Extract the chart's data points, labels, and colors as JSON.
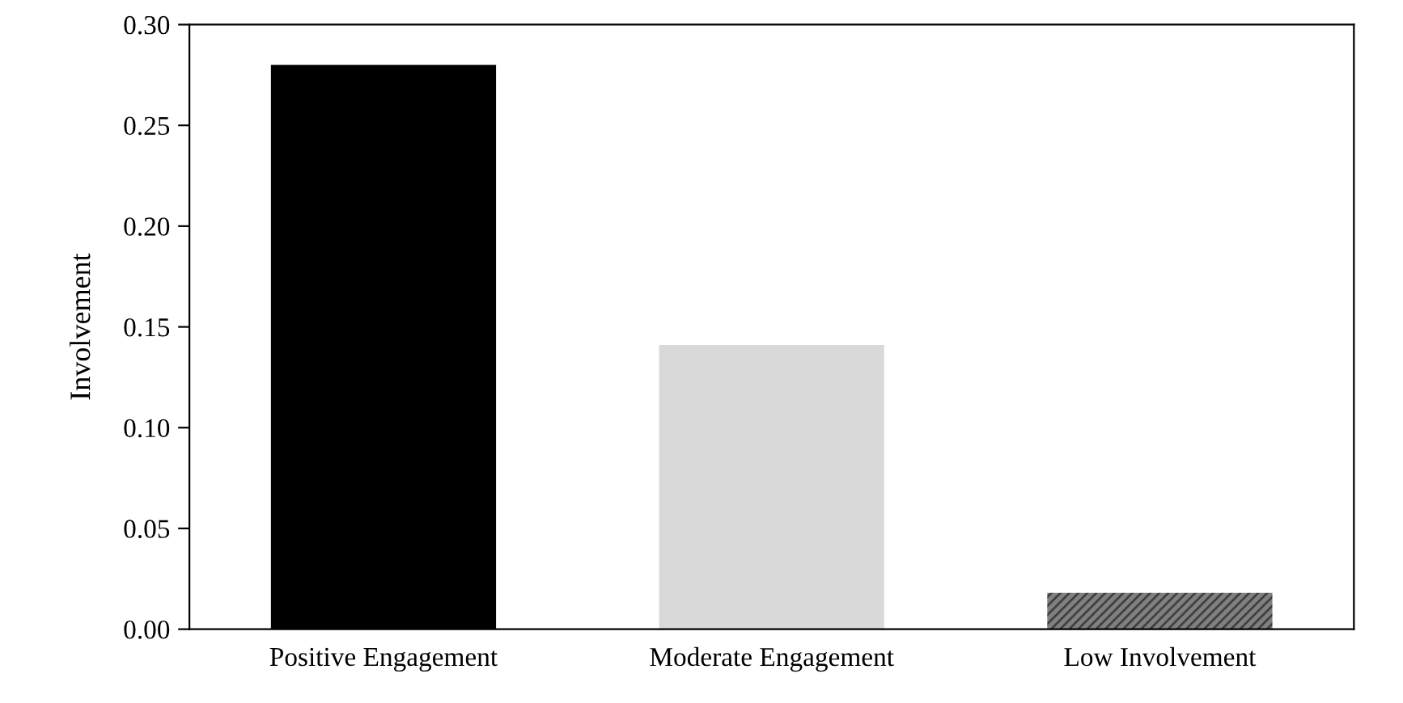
{
  "chart_data": {
    "type": "bar",
    "ylabel": "Involvement",
    "categories": [
      "Positive Engagement",
      "Moderate Engagement",
      "Low Involvement"
    ],
    "values": [
      0.28,
      0.141,
      0.018
    ],
    "colors": [
      "#000000",
      "#d9d9d9",
      "#808080"
    ],
    "ylim": [
      0,
      0.3
    ],
    "yticks": [
      {
        "value": 0,
        "label": "0.00"
      },
      {
        "value": 0.05,
        "label": "0.05"
      },
      {
        "value": 0.1,
        "label": "0.10"
      },
      {
        "value": 0.15,
        "label": "0.15"
      },
      {
        "value": 0.2,
        "label": "0.20"
      },
      {
        "value": 0.25,
        "label": "0.25"
      },
      {
        "value": 0.3,
        "label": "0.30"
      }
    ],
    "grid": false,
    "legend": false
  }
}
